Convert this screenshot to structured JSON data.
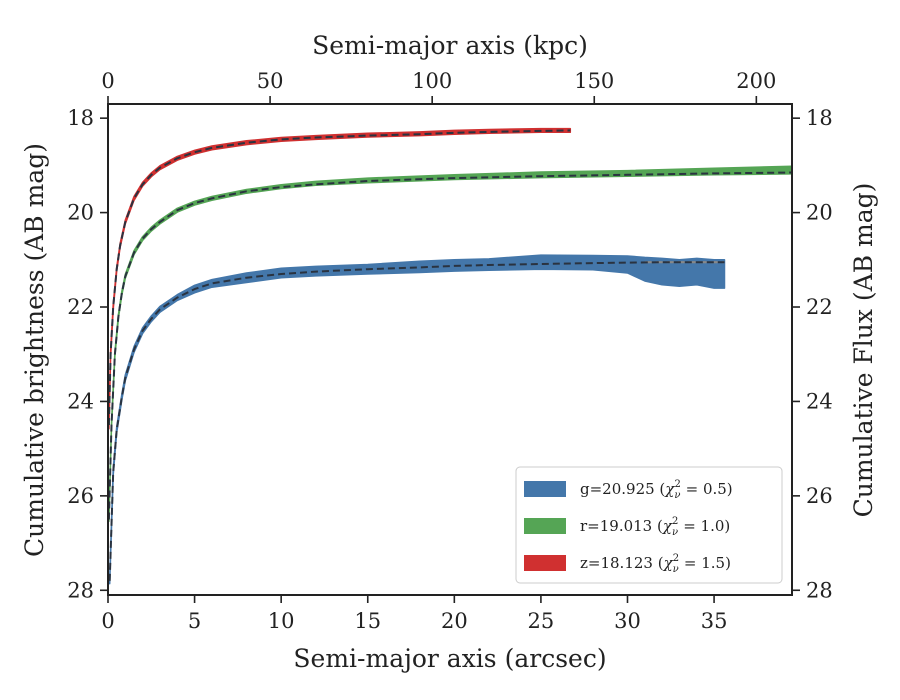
{
  "chart_data": {
    "type": "line",
    "xlabel": "Semi-major axis (arcsec)",
    "ylabel": "Cumulative brightness (AB mag)",
    "top_xlabel": "Semi-major axis (kpc)",
    "right_ylabel": "Cumulative Flux (AB mag)",
    "xlim": [
      0,
      39.5
    ],
    "ylim": [
      28.1,
      17.7
    ],
    "top_xlim": [
      0,
      211
    ],
    "y_inverted": true,
    "grid": false,
    "legend_position": "lower-right",
    "x_ticks": [
      "0",
      "5",
      "10",
      "15",
      "20",
      "25",
      "30",
      "35"
    ],
    "y_ticks": [
      "18",
      "20",
      "22",
      "24",
      "26",
      "28"
    ],
    "top_x_ticks": [
      "0",
      "50",
      "100",
      "150",
      "200"
    ],
    "right_y_ticks": [
      "18",
      "20",
      "22",
      "24",
      "26",
      "28"
    ],
    "legend": [
      {
        "text": "g=20.925",
        "chi": "0.5",
        "color": "#4477aa"
      },
      {
        "text": "r=19.013",
        "chi": "1.0",
        "color": "#55a555"
      },
      {
        "text": "z=18.123",
        "chi": "1.5",
        "color": "#d03030"
      }
    ],
    "series": [
      {
        "color": "#4477aa",
        "x": [
          0.1,
          0.3,
          0.5,
          0.8,
          1.0,
          1.5,
          2.0,
          2.5,
          3.0,
          4.0,
          5.0,
          6.0,
          8.0,
          10.0,
          12.0,
          15.0,
          18.0,
          20.0,
          22.0,
          25.0,
          28.0,
          30.0,
          31.0,
          32.0,
          33.0,
          34.0,
          35.0,
          35.6
        ],
        "y": [
          27.8,
          25.5,
          24.6,
          23.9,
          23.5,
          22.9,
          22.5,
          22.25,
          22.05,
          21.8,
          21.62,
          21.5,
          21.38,
          21.28,
          21.24,
          21.2,
          21.15,
          21.12,
          21.1,
          21.05,
          21.06,
          21.1,
          21.2,
          21.25,
          21.28,
          21.25,
          21.3,
          21.3
        ],
        "width": [
          0.06,
          0.06,
          0.06,
          0.06,
          0.06,
          0.06,
          0.06,
          0.06,
          0.06,
          0.06,
          0.08,
          0.08,
          0.1,
          0.1,
          0.1,
          0.1,
          0.12,
          0.12,
          0.12,
          0.15,
          0.15,
          0.18,
          0.25,
          0.28,
          0.28,
          0.28,
          0.3,
          0.3
        ],
        "model_x": [
          0.1,
          0.3,
          0.5,
          0.8,
          1.0,
          1.5,
          2.0,
          2.5,
          3.0,
          4.0,
          5.0,
          6.0,
          8.0,
          10.0,
          12.0,
          15.0,
          18.0,
          20.0,
          22.0,
          25.0,
          28.0,
          30.0,
          32.0,
          35.6
        ],
        "model_y": [
          27.8,
          25.5,
          24.6,
          23.9,
          23.5,
          22.9,
          22.5,
          22.25,
          22.05,
          21.8,
          21.62,
          21.5,
          21.38,
          21.3,
          21.25,
          21.2,
          21.16,
          21.13,
          21.11,
          21.09,
          21.07,
          21.06,
          21.05,
          21.05
        ]
      },
      {
        "color": "#55a555",
        "x": [
          0.05,
          0.2,
          0.4,
          0.6,
          0.8,
          1.0,
          1.5,
          2.0,
          2.5,
          3.0,
          4.0,
          5.0,
          6.0,
          8.0,
          10.0,
          12.0,
          15.0,
          20.0,
          25.0,
          30.0,
          35.0,
          39.5
        ],
        "y": [
          26.5,
          24.5,
          23.0,
          22.2,
          21.7,
          21.35,
          20.85,
          20.55,
          20.35,
          20.2,
          19.95,
          19.8,
          19.7,
          19.55,
          19.45,
          19.38,
          19.32,
          19.25,
          19.2,
          19.17,
          19.13,
          19.1
        ],
        "width": [
          0.04,
          0.04,
          0.04,
          0.04,
          0.04,
          0.04,
          0.04,
          0.04,
          0.04,
          0.04,
          0.04,
          0.04,
          0.04,
          0.04,
          0.04,
          0.04,
          0.05,
          0.05,
          0.06,
          0.06,
          0.07,
          0.08
        ],
        "model_x": [
          0.05,
          0.2,
          0.4,
          0.6,
          0.8,
          1.0,
          1.5,
          2.0,
          2.5,
          3.0,
          4.0,
          5.0,
          6.0,
          8.0,
          10.0,
          12.0,
          15.0,
          20.0,
          25.0,
          30.0,
          35.0,
          39.5
        ],
        "model_y": [
          26.5,
          24.5,
          23.0,
          22.2,
          21.7,
          21.35,
          20.85,
          20.55,
          20.35,
          20.2,
          19.95,
          19.8,
          19.7,
          19.55,
          19.46,
          19.4,
          19.33,
          19.27,
          19.23,
          19.2,
          19.17,
          19.15
        ]
      },
      {
        "color": "#d03030",
        "x": [
          0.05,
          0.15,
          0.3,
          0.5,
          0.7,
          1.0,
          1.5,
          2.0,
          2.5,
          3.0,
          4.0,
          5.0,
          6.0,
          8.0,
          10.0,
          12.0,
          15.0,
          18.0,
          20.0,
          22.0,
          25.0,
          26.7
        ],
        "y": [
          24.5,
          23.0,
          22.0,
          21.2,
          20.7,
          20.2,
          19.7,
          19.4,
          19.2,
          19.05,
          18.85,
          18.72,
          18.63,
          18.52,
          18.45,
          18.41,
          18.36,
          18.33,
          18.3,
          18.28,
          18.26,
          18.26
        ],
        "width": [
          0.08,
          0.06,
          0.05,
          0.04,
          0.04,
          0.04,
          0.04,
          0.04,
          0.04,
          0.04,
          0.04,
          0.04,
          0.04,
          0.04,
          0.04,
          0.04,
          0.04,
          0.04,
          0.04,
          0.04,
          0.04,
          0.04
        ],
        "model_x": [
          0.05,
          0.15,
          0.3,
          0.5,
          0.7,
          1.0,
          1.5,
          2.0,
          2.5,
          3.0,
          4.0,
          5.0,
          6.0,
          8.0,
          10.0,
          12.0,
          15.0,
          18.0,
          20.0,
          22.0,
          25.0,
          26.7
        ],
        "model_y": [
          24.5,
          23.0,
          22.0,
          21.2,
          20.7,
          20.2,
          19.7,
          19.4,
          19.2,
          19.05,
          18.85,
          18.72,
          18.63,
          18.52,
          18.45,
          18.41,
          18.37,
          18.34,
          18.31,
          18.29,
          18.27,
          18.26
        ]
      }
    ],
    "extrapolation": {
      "color": "#888888",
      "x": [
        31.0,
        35.6
      ],
      "y": [
        21.05,
        21.05
      ]
    }
  }
}
